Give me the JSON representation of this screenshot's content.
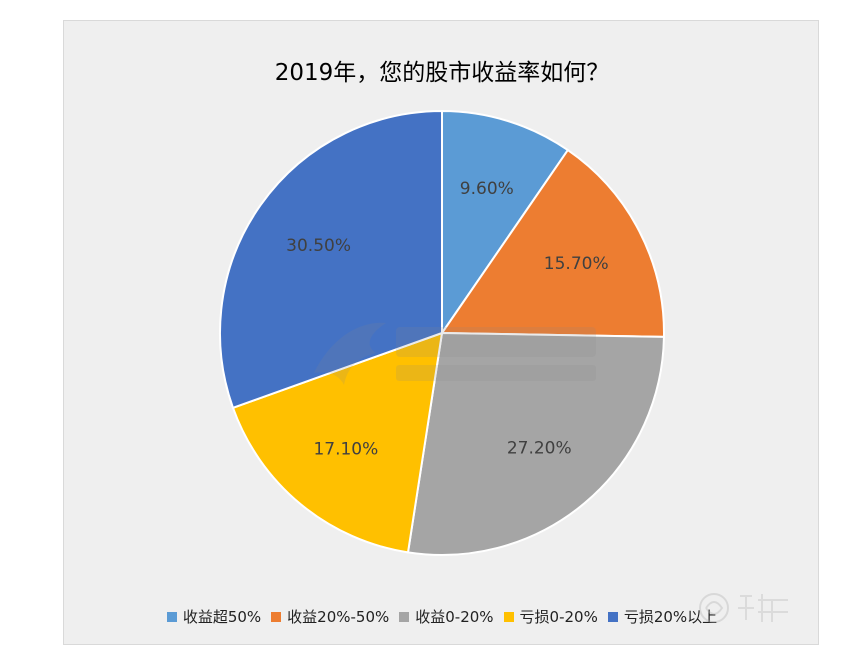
{
  "chart_data": {
    "type": "pie",
    "title": "2019年，您的股市收益率如何？",
    "categories": [
      "收益超50%",
      "收益20%-50%",
      "收益0-20%",
      "亏损0-20%",
      "亏损20%以上"
    ],
    "values": [
      9.6,
      15.7,
      27.2,
      17.1,
      30.5
    ],
    "data_labels": [
      "9.60%",
      "15.70%",
      "27.20%",
      "17.10%",
      "30.50%"
    ],
    "colors": [
      "#5b9bd5",
      "#ed7d31",
      "#a5a5a5",
      "#ffc000",
      "#4472c4"
    ],
    "legend_position": "bottom",
    "start_angle_deg": 0,
    "direction": "clockwise"
  }
}
